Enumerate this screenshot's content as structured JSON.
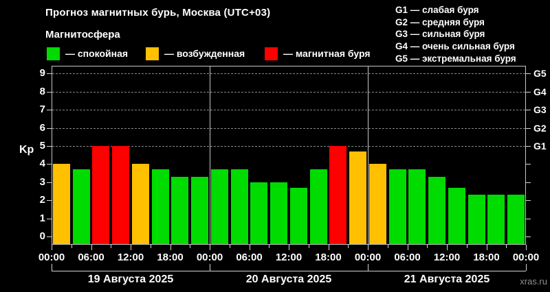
{
  "header": {
    "title": "Прогноз магнитных бурь, Москва (UTC+03)",
    "subtitle": "Магнитосфера"
  },
  "legend": {
    "items": [
      {
        "name": "calm",
        "label": "— спокойная",
        "color": "#00DB00",
        "x": 68
      },
      {
        "name": "excited",
        "label": "— возбужденная",
        "color": "#FFC000",
        "x": 212
      },
      {
        "name": "storm",
        "label": "— магнитная буря",
        "color": "#FF0000",
        "x": 385
      }
    ]
  },
  "g_legend": [
    "G1 — слабая буря",
    "G2 — средняя буря",
    "G3 — сильная буря",
    "G4 — очень сильная буря",
    "G5 — экстремальная буря"
  ],
  "watermark": "xras.ru",
  "chart_data": {
    "type": "bar",
    "title": "Прогноз магнитных бурь, Москва (UTC+03)",
    "ylabel": "Kp",
    "ylim": [
      0,
      9.7
    ],
    "y_ticks": [
      0,
      1,
      2,
      3,
      4,
      5,
      6,
      7,
      8,
      9
    ],
    "grid_kp_levels": [
      5,
      6,
      7,
      8,
      9
    ],
    "right_axis": [
      {
        "kp": 5,
        "label": "G1"
      },
      {
        "kp": 6,
        "label": "G2"
      },
      {
        "kp": 7,
        "label": "G3"
      },
      {
        "kp": 8,
        "label": "G4"
      },
      {
        "kp": 9,
        "label": "G5"
      }
    ],
    "interval_hours": 3,
    "x_tick_labels": [
      "00:00",
      "06:00",
      "12:00",
      "18:00",
      "00:00",
      "06:00",
      "12:00",
      "18:00",
      "00:00",
      "06:00",
      "12:00",
      "18:00",
      "00:00"
    ],
    "days": [
      {
        "label": "19 Августа 2025",
        "kp": [
          4.0,
          3.7,
          5.0,
          5.0,
          4.0,
          3.7,
          3.3,
          3.3
        ]
      },
      {
        "label": "20 Августа 2025",
        "kp": [
          3.7,
          3.7,
          3.0,
          3.0,
          2.7,
          3.7,
          5.0,
          4.7
        ]
      },
      {
        "label": "21 Августа 2025",
        "kp": [
          4.0,
          3.7,
          3.7,
          3.3,
          2.7,
          2.3,
          2.3,
          2.3
        ]
      }
    ],
    "thresholds": {
      "excited_min": 4.0,
      "storm_min": 5.0
    },
    "colors": {
      "calm": "#00DB00",
      "excited": "#FFC000",
      "storm": "#FF0000"
    },
    "legend_position": "top-left",
    "grid": "dashed horizontal at Kp 5-9 only"
  }
}
